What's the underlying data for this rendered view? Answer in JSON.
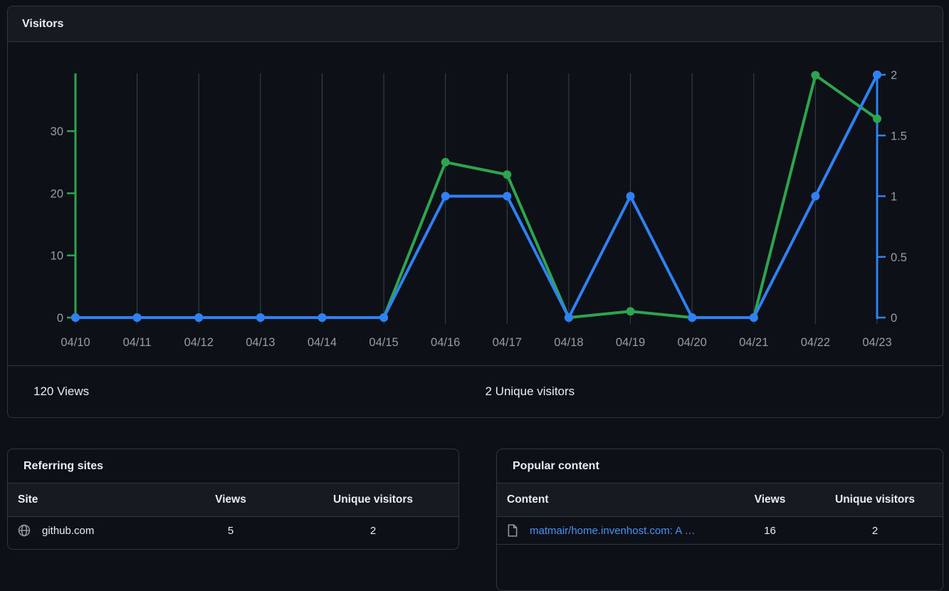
{
  "visitors_card": {
    "title": "Visitors",
    "footer": {
      "views_total": "120 Views",
      "unique_total": "2 Unique visitors"
    }
  },
  "chart_data": {
    "type": "line",
    "title": "Visitors",
    "categories": [
      "04/10",
      "04/11",
      "04/12",
      "04/13",
      "04/14",
      "04/15",
      "04/16",
      "04/17",
      "04/18",
      "04/19",
      "04/20",
      "04/21",
      "04/22",
      "04/23"
    ],
    "series": [
      {
        "name": "Views",
        "axis": "left",
        "color": "#2da44e",
        "values": [
          0,
          0,
          0,
          0,
          0,
          0,
          25,
          23,
          0,
          1,
          0,
          0,
          39,
          32
        ]
      },
      {
        "name": "Unique visitors",
        "axis": "right",
        "color": "#2f81f7",
        "values": [
          0,
          0,
          0,
          0,
          0,
          0,
          1,
          1,
          0,
          1,
          0,
          0,
          1,
          2
        ]
      }
    ],
    "y_left": {
      "ticks": [
        0,
        10,
        20,
        30
      ],
      "max": 39.3,
      "axis_color": "#2da44e"
    },
    "y_right": {
      "ticks": [
        0,
        0.5,
        1,
        1.5,
        2
      ],
      "max": 2,
      "axis_color": "#2f81f7"
    },
    "grid": "vertical",
    "grid_color": "#3b424b",
    "tick_label_color": "#959da5",
    "legend": "none"
  },
  "referring_sites": {
    "title": "Referring sites",
    "columns": [
      "Site",
      "Views",
      "Unique visitors"
    ],
    "rows": [
      {
        "site": "github.com",
        "views": "5",
        "unique": "2",
        "icon": "globe-icon"
      }
    ]
  },
  "popular_content": {
    "title": "Popular content",
    "columns": [
      "Content",
      "Views",
      "Unique visitors"
    ],
    "rows": [
      {
        "content": "matmair/home.invenhost.com: A …",
        "views": "16",
        "unique": "2",
        "icon": "file-icon"
      }
    ]
  }
}
